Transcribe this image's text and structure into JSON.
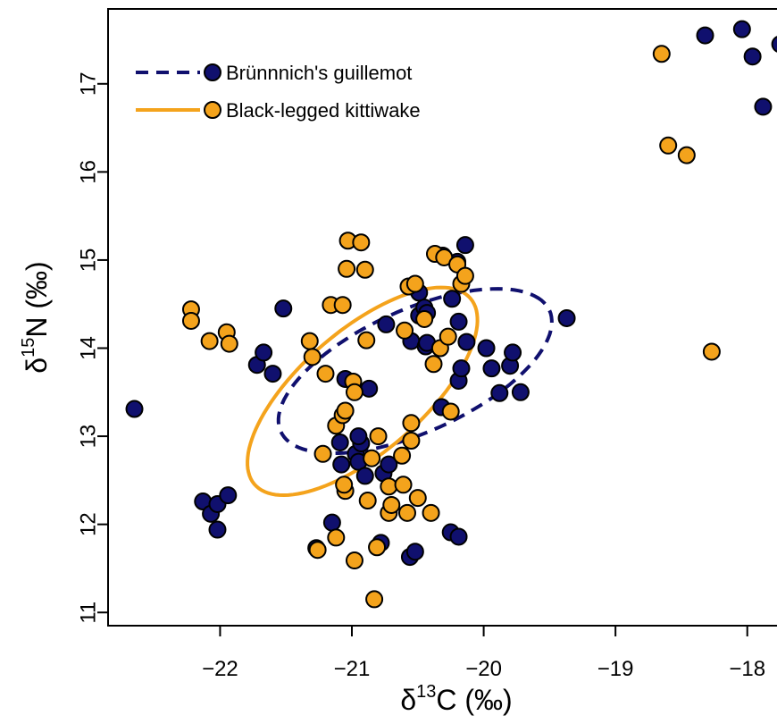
{
  "chart_data": {
    "type": "scatter",
    "xlabel_parts": [
      "δ",
      "13",
      "C (‰)"
    ],
    "ylabel_parts": [
      "δ",
      "15",
      "N (‰)"
    ],
    "xlim": [
      -22.85,
      -17.7
    ],
    "ylim": [
      10.85,
      17.85
    ],
    "xticks": [
      -22,
      -21,
      -20,
      -19,
      -18
    ],
    "xtick_labels": [
      "−22",
      "−21",
      "−20",
      "−19",
      "−18"
    ],
    "yticks": [
      11,
      12,
      13,
      14,
      15,
      16,
      17
    ],
    "ytick_labels": [
      "11",
      "12",
      "13",
      "14",
      "15",
      "16",
      "17"
    ],
    "grid": false,
    "legend_position": "top-left",
    "series": [
      {
        "name": "Brünnnich's guillemot",
        "color": "#10106e",
        "ellipse_style": "dashed",
        "ellipse": {
          "cx": -20.52,
          "cy": 13.74,
          "rx": 1.25,
          "ry": 0.62,
          "angle_deg": 40
        },
        "points": [
          [
            -22.65,
            13.31
          ],
          [
            -22.13,
            12.26
          ],
          [
            -22.07,
            12.12
          ],
          [
            -22.02,
            12.23
          ],
          [
            -21.94,
            12.33
          ],
          [
            -22.02,
            11.94
          ],
          [
            -21.72,
            13.81
          ],
          [
            -21.67,
            13.95
          ],
          [
            -21.6,
            13.71
          ],
          [
            -21.52,
            14.45
          ],
          [
            -21.27,
            11.73
          ],
          [
            -21.15,
            12.02
          ],
          [
            -21.09,
            12.93
          ],
          [
            -21.08,
            12.68
          ],
          [
            -21.05,
            13.65
          ],
          [
            -20.97,
            12.8
          ],
          [
            -20.95,
            12.71
          ],
          [
            -20.93,
            12.92
          ],
          [
            -20.95,
            13.0
          ],
          [
            -20.9,
            12.55
          ],
          [
            -20.87,
            13.54
          ],
          [
            -20.78,
            11.79
          ],
          [
            -20.76,
            12.58
          ],
          [
            -20.72,
            12.68
          ],
          [
            -20.74,
            14.27
          ],
          [
            -20.56,
            11.63
          ],
          [
            -20.52,
            11.69
          ],
          [
            -20.55,
            14.08
          ],
          [
            -20.49,
            14.37
          ],
          [
            -20.49,
            14.63
          ],
          [
            -20.45,
            14.46
          ],
          [
            -20.43,
            14.4
          ],
          [
            -20.44,
            14.02
          ],
          [
            -20.43,
            14.06
          ],
          [
            -20.32,
            13.33
          ],
          [
            -20.31,
            15.05
          ],
          [
            -20.25,
            11.91
          ],
          [
            -20.19,
            11.86
          ],
          [
            -20.24,
            14.56
          ],
          [
            -20.2,
            14.98
          ],
          [
            -20.19,
            14.3
          ],
          [
            -20.19,
            13.63
          ],
          [
            -20.17,
            13.77
          ],
          [
            -20.13,
            14.07
          ],
          [
            -20.14,
            15.17
          ],
          [
            -19.98,
            14.0
          ],
          [
            -19.94,
            13.77
          ],
          [
            -19.88,
            13.49
          ],
          [
            -19.8,
            13.8
          ],
          [
            -19.78,
            13.95
          ],
          [
            -19.72,
            13.5
          ],
          [
            -19.37,
            14.34
          ],
          [
            -18.32,
            17.55
          ],
          [
            -18.04,
            17.62
          ],
          [
            -17.96,
            17.31
          ],
          [
            -17.88,
            16.74
          ],
          [
            -17.75,
            17.45
          ]
        ]
      },
      {
        "name": "Black-legged kittiwake",
        "color": "#f4a31c",
        "ellipse_style": "solid",
        "ellipse": {
          "cx": -20.92,
          "cy": 13.51,
          "rx": 1.36,
          "ry": 0.55,
          "angle_deg": 57
        },
        "points": [
          [
            -22.22,
            14.44
          ],
          [
            -22.22,
            14.31
          ],
          [
            -22.08,
            14.08
          ],
          [
            -21.95,
            14.18
          ],
          [
            -21.93,
            14.05
          ],
          [
            -21.32,
            14.08
          ],
          [
            -21.3,
            13.9
          ],
          [
            -21.26,
            11.71
          ],
          [
            -21.22,
            12.8
          ],
          [
            -21.2,
            13.71
          ],
          [
            -21.16,
            14.49
          ],
          [
            -21.12,
            13.12
          ],
          [
            -21.12,
            11.85
          ],
          [
            -21.07,
            14.49
          ],
          [
            -21.07,
            13.24
          ],
          [
            -21.05,
            12.38
          ],
          [
            -21.05,
            13.29
          ],
          [
            -21.06,
            12.45
          ],
          [
            -21.03,
            15.22
          ],
          [
            -21.04,
            14.9
          ],
          [
            -20.99,
            13.62
          ],
          [
            -20.98,
            13.5
          ],
          [
            -20.98,
            11.59
          ],
          [
            -20.93,
            15.2
          ],
          [
            -20.9,
            14.89
          ],
          [
            -20.89,
            14.09
          ],
          [
            -20.88,
            12.27
          ],
          [
            -20.85,
            12.75
          ],
          [
            -20.83,
            11.15
          ],
          [
            -20.81,
            11.74
          ],
          [
            -20.8,
            13.0
          ],
          [
            -20.72,
            12.43
          ],
          [
            -20.72,
            12.13
          ],
          [
            -20.7,
            12.22
          ],
          [
            -20.62,
            12.78
          ],
          [
            -20.61,
            12.45
          ],
          [
            -20.58,
            12.13
          ],
          [
            -20.6,
            14.2
          ],
          [
            -20.57,
            14.7
          ],
          [
            -20.55,
            13.15
          ],
          [
            -20.55,
            12.95
          ],
          [
            -20.52,
            14.73
          ],
          [
            -20.5,
            12.3
          ],
          [
            -20.45,
            14.33
          ],
          [
            -20.4,
            12.13
          ],
          [
            -20.38,
            13.82
          ],
          [
            -20.37,
            15.07
          ],
          [
            -20.33,
            14.0
          ],
          [
            -20.3,
            15.03
          ],
          [
            -20.27,
            14.13
          ],
          [
            -20.25,
            13.28
          ],
          [
            -20.2,
            14.95
          ],
          [
            -20.17,
            14.73
          ],
          [
            -20.14,
            14.82
          ],
          [
            -18.65,
            17.34
          ],
          [
            -18.6,
            16.3
          ],
          [
            -18.46,
            16.19
          ],
          [
            -18.27,
            13.96
          ]
        ]
      }
    ]
  }
}
